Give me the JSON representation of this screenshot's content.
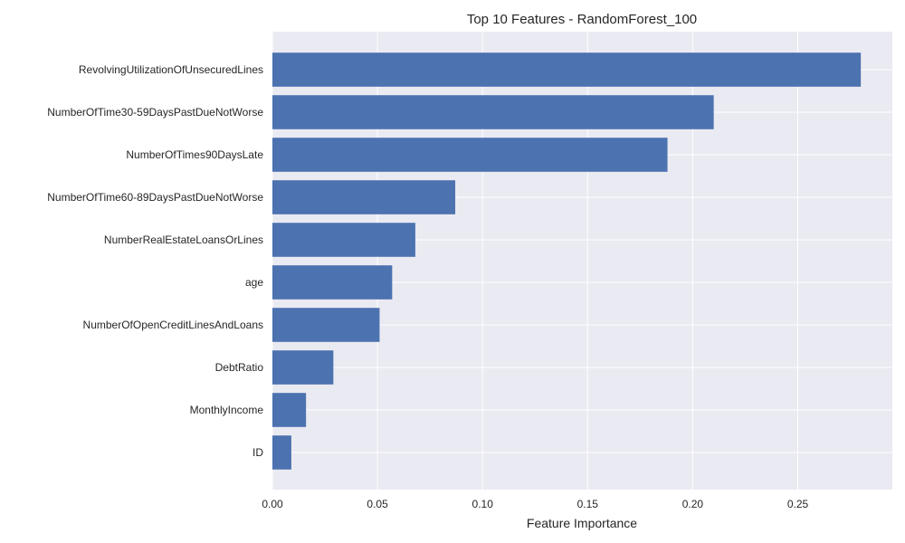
{
  "chart_data": {
    "type": "bar",
    "orientation": "horizontal",
    "title": "Top 10 Features - RandomForest_100",
    "xlabel": "Feature Importance",
    "ylabel": "",
    "xlim": [
      0,
      0.295
    ],
    "xticks": [
      0.0,
      0.05,
      0.1,
      0.15,
      0.2,
      0.25
    ],
    "xtick_labels": [
      "0.00",
      "0.05",
      "0.10",
      "0.15",
      "0.20",
      "0.25"
    ],
    "grid": true,
    "categories": [
      "RevolvingUtilizationOfUnsecuredLines",
      "NumberOfTime30-59DaysPastDueNotWorse",
      "NumberOfTimes90DaysLate",
      "NumberOfTime60-89DaysPastDueNotWorse",
      "NumberRealEstateLoansOrLines",
      "age",
      "NumberOfOpenCreditLinesAndLoans",
      "DebtRatio",
      "MonthlyIncome",
      "ID"
    ],
    "values": [
      0.28,
      0.21,
      0.188,
      0.087,
      0.068,
      0.057,
      0.051,
      0.029,
      0.016,
      0.009
    ],
    "bar_color": "#4c72b0",
    "background_color": "#eaeaf2",
    "grid_color": "#ffffff"
  }
}
